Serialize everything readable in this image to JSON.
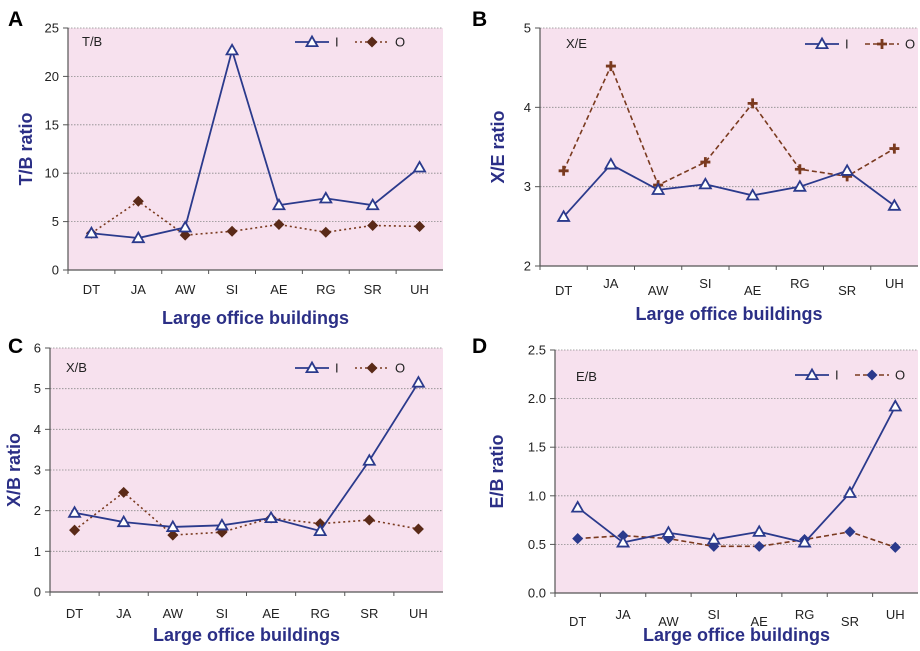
{
  "colors": {
    "plot_bg": "#f7e1ee",
    "series_I": "#2b3a8c",
    "series_O": "#7a3a1f",
    "marker_O": "#5a2a18",
    "marker_O_D": "#2b3a8c",
    "grid": "#8a8a8a",
    "axis": "#555555",
    "label": "#2b2f86"
  },
  "chart_data": [
    {
      "panel": "A",
      "type": "line",
      "inner_label": "T/B",
      "ylabel": "T/B ratio",
      "xlabel": "Large office buildings",
      "categories": [
        "DT",
        "JA",
        "AW",
        "SI",
        "AE",
        "RG",
        "SR",
        "UH"
      ],
      "ylim": [
        0,
        25
      ],
      "yticks": [
        0,
        5,
        10,
        15,
        20,
        25
      ],
      "ytick_labels": [
        "0",
        "5",
        "10",
        "15",
        "20",
        "25"
      ],
      "grid": true,
      "legend_position": "top-right",
      "series": [
        {
          "name": "I",
          "style": "solid",
          "marker": "triangle-open",
          "values": [
            3.8,
            3.3,
            4.4,
            22.7,
            6.7,
            7.4,
            6.7,
            10.6
          ]
        },
        {
          "name": "O",
          "style": "dotted",
          "marker": "diamond",
          "values": [
            3.8,
            7.1,
            3.6,
            4.0,
            4.7,
            3.9,
            4.6,
            4.5
          ]
        }
      ]
    },
    {
      "panel": "B",
      "type": "line",
      "inner_label": "X/E",
      "ylabel": "X/E ratio",
      "xlabel": "Large office buildings",
      "categories": [
        "DT",
        "JA",
        "AW",
        "SI",
        "AE",
        "RG",
        "SR",
        "UH"
      ],
      "ylim": [
        2,
        5
      ],
      "yticks": [
        2,
        3,
        4,
        5
      ],
      "ytick_labels": [
        "2",
        "3",
        "4",
        "5"
      ],
      "grid": true,
      "legend_position": "top-right",
      "series": [
        {
          "name": "I",
          "style": "solid",
          "marker": "triangle-open",
          "values": [
            2.62,
            3.28,
            2.96,
            3.03,
            2.89,
            3.0,
            3.2,
            2.76
          ]
        },
        {
          "name": "O",
          "style": "dashed",
          "marker": "plus",
          "values": [
            3.2,
            4.52,
            3.02,
            3.31,
            4.05,
            3.22,
            3.13,
            3.48
          ]
        }
      ]
    },
    {
      "panel": "C",
      "type": "line",
      "inner_label": "X/B",
      "ylabel": "X/B ratio",
      "xlabel": "Large office buildings",
      "categories": [
        "DT",
        "JA",
        "AW",
        "SI",
        "AE",
        "RG",
        "SR",
        "UH"
      ],
      "ylim": [
        0,
        6
      ],
      "yticks": [
        0,
        1,
        2,
        3,
        4,
        5,
        6
      ],
      "ytick_labels": [
        "0",
        "1",
        "2",
        "3",
        "4",
        "5",
        "6"
      ],
      "grid": true,
      "legend_position": "top-right",
      "series": [
        {
          "name": "I",
          "style": "solid",
          "marker": "triangle-open",
          "values": [
            1.95,
            1.72,
            1.6,
            1.64,
            1.82,
            1.5,
            3.23,
            5.15
          ]
        },
        {
          "name": "O",
          "style": "dotted",
          "marker": "diamond",
          "values": [
            1.52,
            2.45,
            1.4,
            1.47,
            1.82,
            1.68,
            1.77,
            1.55
          ]
        }
      ]
    },
    {
      "panel": "D",
      "type": "line",
      "inner_label": "E/B",
      "ylabel": "E/B ratio",
      "xlabel": "Large office buildings",
      "categories": [
        "DT",
        "JA",
        "AW",
        "SI",
        "AE",
        "RG",
        "SR",
        "UH"
      ],
      "ylim": [
        0,
        2.5
      ],
      "yticks": [
        0,
        0.5,
        1.0,
        1.5,
        2.0,
        2.5
      ],
      "ytick_labels": [
        "0.0",
        "0.5",
        "1.0",
        "1.5",
        "2.0",
        "2.5"
      ],
      "grid": true,
      "legend_position": "top-right",
      "series": [
        {
          "name": "I",
          "style": "solid",
          "marker": "triangle-open",
          "values": [
            0.88,
            0.52,
            0.62,
            0.55,
            0.63,
            0.52,
            1.03,
            1.92
          ]
        },
        {
          "name": "O",
          "style": "dashed",
          "marker": "diamond",
          "values": [
            0.56,
            0.59,
            0.56,
            0.48,
            0.48,
            0.55,
            0.63,
            0.47
          ]
        }
      ]
    }
  ]
}
